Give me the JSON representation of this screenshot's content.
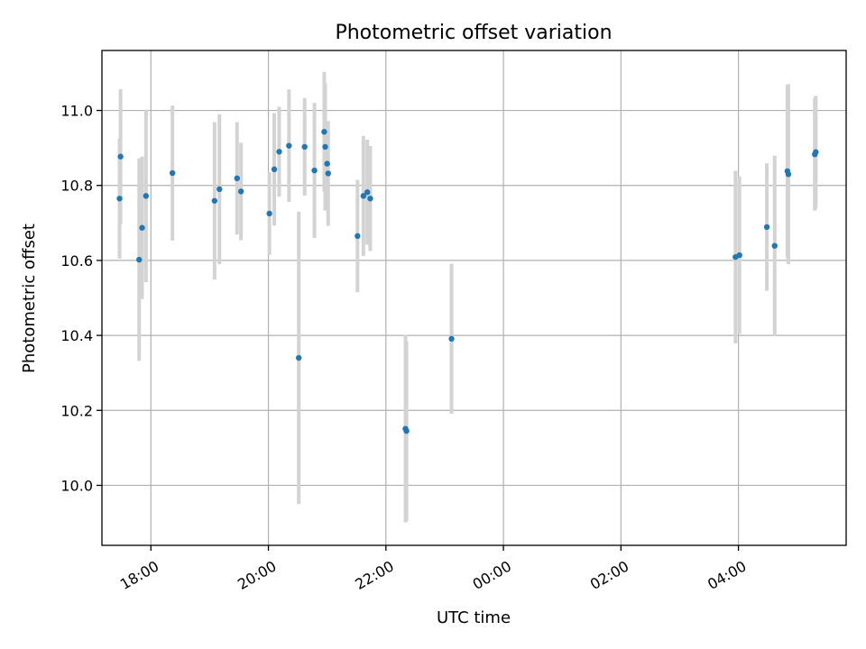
{
  "chart_data": {
    "type": "scatter",
    "title": "Photometric offset variation",
    "xlabel": "UTC time",
    "ylabel": "Photometric offset",
    "x_axis_kind": "datetime",
    "xlim": [
      "17:10",
      "5:50 (+1 day)"
    ],
    "ylim": [
      9.84,
      11.16
    ],
    "grid": true,
    "x_ticks": [
      "18:00",
      "20:00",
      "22:00",
      "00:00",
      "02:00",
      "04:00"
    ],
    "y_ticks": [
      "10.0",
      "10.2",
      "10.4",
      "10.6",
      "10.8",
      "11.0"
    ],
    "y_tick_values": [
      10.0,
      10.2,
      10.4,
      10.6,
      10.8,
      11.0
    ],
    "series": [
      {
        "color": "#1f77b4",
        "error_color": "#d3d3d3",
        "points": [
          {
            "x": "17:28",
            "y": 10.765,
            "yerr": 0.16
          },
          {
            "x": "17:29",
            "y": 10.877,
            "yerr": 0.18
          },
          {
            "x": "17:48",
            "y": 10.602,
            "yerr": 0.27
          },
          {
            "x": "17:51",
            "y": 10.687,
            "yerr": 0.19
          },
          {
            "x": "17:55",
            "y": 10.772,
            "yerr": 0.23
          },
          {
            "x": "18:22",
            "y": 10.833,
            "yerr": 0.18
          },
          {
            "x": "19:05",
            "y": 10.759,
            "yerr": 0.21
          },
          {
            "x": "19:10",
            "y": 10.79,
            "yerr": 0.2
          },
          {
            "x": "19:28",
            "y": 10.819,
            "yerr": 0.15
          },
          {
            "x": "19:32",
            "y": 10.784,
            "yerr": 0.13
          },
          {
            "x": "20:01",
            "y": 10.725,
            "yerr": 0.11
          },
          {
            "x": "20:06",
            "y": 10.843,
            "yerr": 0.15
          },
          {
            "x": "20:11",
            "y": 10.89,
            "yerr": 0.12
          },
          {
            "x": "20:21",
            "y": 10.906,
            "yerr": 0.15
          },
          {
            "x": "20:31",
            "y": 10.34,
            "yerr": 0.39
          },
          {
            "x": "20:37",
            "y": 10.903,
            "yerr": 0.13
          },
          {
            "x": "20:47",
            "y": 10.84,
            "yerr": 0.18
          },
          {
            "x": "20:57",
            "y": 10.943,
            "yerr": 0.16
          },
          {
            "x": "20:58",
            "y": 10.903,
            "yerr": 0.17
          },
          {
            "x": "21:00",
            "y": 10.858,
            "yerr": 0.11
          },
          {
            "x": "21:01",
            "y": 10.832,
            "yerr": 0.14
          },
          {
            "x": "21:31",
            "y": 10.665,
            "yerr": 0.15
          },
          {
            "x": "21:37",
            "y": 10.772,
            "yerr": 0.16
          },
          {
            "x": "21:41",
            "y": 10.782,
            "yerr": 0.14
          },
          {
            "x": "21:44",
            "y": 10.765,
            "yerr": 0.14
          },
          {
            "x": "22:20",
            "y": 10.151,
            "yerr": 0.25
          },
          {
            "x": "22:21",
            "y": 10.145,
            "yerr": 0.24
          },
          {
            "x": "23:07",
            "y": 10.391,
            "yerr": 0.2
          },
          {
            "x": "03:57",
            "y": 10.609,
            "yerr": 0.23
          },
          {
            "x": "04:01",
            "y": 10.614,
            "yerr": 0.21
          },
          {
            "x": "04:29",
            "y": 10.689,
            "yerr": 0.17
          },
          {
            "x": "04:37",
            "y": 10.639,
            "yerr": 0.24
          },
          {
            "x": "04:50",
            "y": 10.838,
            "yerr": 0.23
          },
          {
            "x": "04:51",
            "y": 10.83,
            "yerr": 0.24
          },
          {
            "x": "05:18",
            "y": 10.883,
            "yerr": 0.15
          },
          {
            "x": "05:19",
            "y": 10.889,
            "yerr": 0.15
          }
        ]
      }
    ]
  }
}
